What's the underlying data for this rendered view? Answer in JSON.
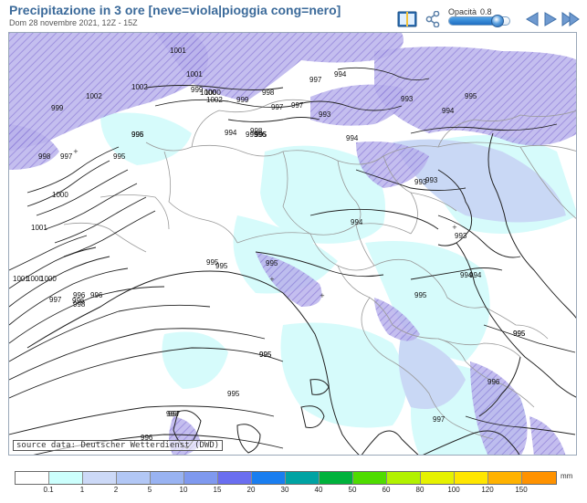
{
  "header": {
    "title": "Precipitazione in 3 ore [neve=viola|pioggia cong=nero]",
    "subtitle": "Dom 28 novembre 2021, 12Z - 15Z"
  },
  "toolbar": {
    "opacity_label": "Opacità",
    "opacity_value": "0.8",
    "opacity_level": 0.8
  },
  "map": {
    "source": "source data: Deutscher Wetterdienst (DWD)",
    "colors": {
      "snow_fill": "#b9b2ec",
      "snow_hatch": "#8e7fd9",
      "light_rain": "#d6fbfb",
      "moderate_rain": "#c9d8f5",
      "border": "#9a9a9a",
      "coast": "#222222",
      "isobar": "#222222"
    },
    "isobar_labels": [
      "1001",
      "1002",
      "1002",
      "1002",
      "1001",
      "1000",
      "999",
      "1000",
      "999",
      "997",
      "998",
      "998",
      "997",
      "997",
      "996",
      "995",
      "995",
      "994",
      "995",
      "993",
      "994",
      "993",
      "995",
      "994",
      "994",
      "993",
      "994",
      "993",
      "995",
      "995",
      "996",
      "997",
      "996",
      "999",
      "998",
      "997",
      "996",
      "995",
      "1000",
      "1001",
      "1000",
      "1000",
      "1001",
      "998",
      "995",
      "994",
      "995",
      "995",
      "997",
      "997",
      "995",
      "996",
      "995",
      "996",
      "995",
      "994",
      "995",
      "996",
      "997",
      "993"
    ]
  },
  "legend": {
    "unit": "mm",
    "colors": [
      "#ffffff",
      "#ccfffd",
      "#ccd9f7",
      "#b2c7f5",
      "#99b3f2",
      "#7f99ef",
      "#6a6ef0",
      "#1a7ef0",
      "#00a3a3",
      "#00b23c",
      "#4fdc00",
      "#b2f200",
      "#e6f200",
      "#ffe600",
      "#ffb200",
      "#ff9200"
    ],
    "ticks": [
      "0.1",
      "1",
      "2",
      "5",
      "10",
      "15",
      "20",
      "30",
      "40",
      "50",
      "60",
      "80",
      "100",
      "120",
      "150"
    ]
  }
}
